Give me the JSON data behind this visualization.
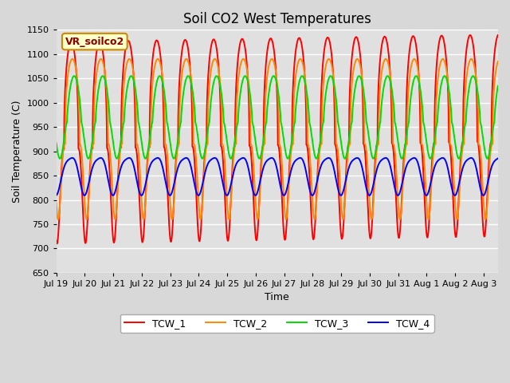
{
  "title": "Soil CO2 West Temperatures",
  "xlabel": "Time",
  "ylabel": "Soil Temperature (C)",
  "ylim": [
    650,
    1150
  ],
  "annotation": "VR_soilco2",
  "colors": {
    "TCW_1": "#ff0000",
    "TCW_2": "#ff8800",
    "TCW_3": "#00dd00",
    "TCW_4": "#0000ff"
  },
  "series_labels": [
    "TCW_1",
    "TCW_2",
    "TCW_3",
    "TCW_4"
  ],
  "xtick_labels": [
    "Jul 19",
    "Jul 20",
    "Jul 21",
    "Jul 22",
    "Jul 23",
    "Jul 24",
    "Jul 25",
    "Jul 26",
    "Jul 27",
    "Jul 28",
    "Jul 29",
    "Jul 30",
    "Jul 31",
    "Aug 1",
    "Aug 2",
    "Aug 3"
  ],
  "background_color": "#d8d8d8",
  "plot_bg_color": "#e0e0e0",
  "n_points": 5000,
  "duration_days": 15.5,
  "period_days": 1.0,
  "linewidth": 1.4,
  "grid_color": "#ffffff",
  "title_fontsize": 12,
  "axis_fontsize": 9,
  "tick_fontsize": 8,
  "figsize": [
    6.4,
    4.8
  ],
  "dpi": 100
}
